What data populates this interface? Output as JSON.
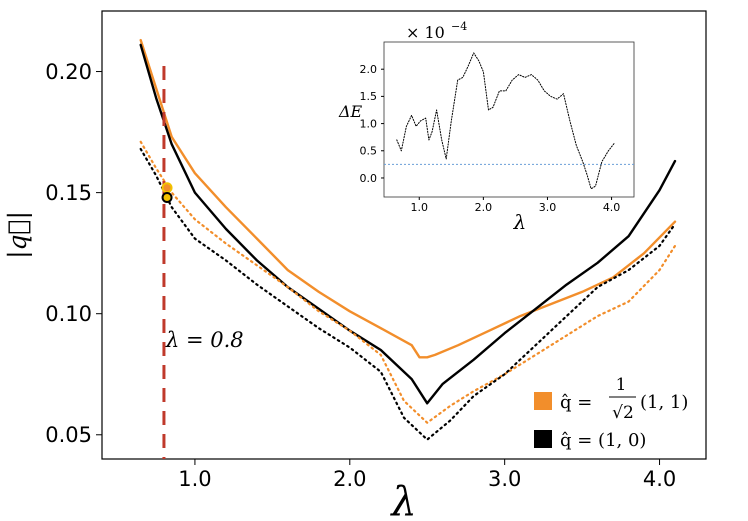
{
  "chart_data": [
    {
      "type": "line",
      "title": "",
      "xlabel": "λ",
      "ylabel": "|q⃗|",
      "xlim": [
        0.4,
        4.3
      ],
      "ylim": [
        0.04,
        0.225
      ],
      "xticks": [
        1.0,
        2.0,
        3.0,
        4.0
      ],
      "xtick_labels": [
        "1.0",
        "2.0",
        "3.0",
        "4.0"
      ],
      "yticks": [
        0.05,
        0.1,
        0.15,
        0.2
      ],
      "ytick_labels": [
        "0.05",
        "0.10",
        "0.15",
        "0.20"
      ],
      "vline": {
        "x": 0.8,
        "label": "λ = 0.8",
        "color": "#c0392b"
      },
      "legend_position": "bottom-right",
      "legend": [
        {
          "color": "#f28e2b",
          "label_lhs": "q̂ =",
          "frac_num": "1",
          "frac_den": "√2",
          "label_rhs": "(1, 1)"
        },
        {
          "color": "#000000",
          "label_lhs": "q̂ = (1, 0)",
          "frac_num": "",
          "frac_den": "",
          "label_rhs": ""
        }
      ],
      "series": [
        {
          "name": "orange-solid",
          "color": "#f28e2b",
          "style": "solid",
          "x": [
            0.65,
            0.75,
            0.85,
            1.0,
            1.2,
            1.4,
            1.6,
            1.8,
            2.0,
            2.2,
            2.4,
            2.45,
            2.5,
            2.55,
            2.7,
            2.9,
            3.1,
            3.3,
            3.5,
            3.7,
            3.9,
            4.1
          ],
          "y": [
            0.213,
            0.193,
            0.173,
            0.158,
            0.144,
            0.131,
            0.118,
            0.109,
            0.101,
            0.094,
            0.087,
            0.082,
            0.082,
            0.083,
            0.087,
            0.093,
            0.099,
            0.104,
            0.109,
            0.115,
            0.125,
            0.138
          ]
        },
        {
          "name": "black-solid",
          "color": "#000000",
          "style": "solid",
          "x": [
            0.65,
            0.75,
            0.85,
            1.0,
            1.2,
            1.4,
            1.6,
            1.8,
            2.0,
            2.2,
            2.4,
            2.5,
            2.6,
            2.8,
            3.0,
            3.2,
            3.4,
            3.6,
            3.8,
            4.0,
            4.1
          ],
          "y": [
            0.211,
            0.189,
            0.17,
            0.15,
            0.135,
            0.122,
            0.111,
            0.102,
            0.093,
            0.085,
            0.073,
            0.063,
            0.071,
            0.081,
            0.092,
            0.102,
            0.112,
            0.121,
            0.132,
            0.151,
            0.163
          ]
        },
        {
          "name": "orange-dotted",
          "color": "#f28e2b",
          "style": "dotted",
          "x": [
            0.65,
            0.75,
            0.85,
            1.0,
            1.2,
            1.4,
            1.6,
            1.8,
            2.0,
            2.2,
            2.35,
            2.5,
            2.65,
            2.8,
            3.0,
            3.2,
            3.4,
            3.6,
            3.8,
            4.0,
            4.1
          ],
          "y": [
            0.171,
            0.16,
            0.15,
            0.139,
            0.129,
            0.12,
            0.111,
            0.101,
            0.093,
            0.083,
            0.064,
            0.055,
            0.062,
            0.068,
            0.075,
            0.083,
            0.091,
            0.099,
            0.105,
            0.118,
            0.128
          ]
        },
        {
          "name": "black-dotted",
          "color": "#000000",
          "style": "dotted",
          "x": [
            0.65,
            0.75,
            0.85,
            1.0,
            1.2,
            1.4,
            1.6,
            1.8,
            2.0,
            2.2,
            2.35,
            2.5,
            2.65,
            2.8,
            3.0,
            3.2,
            3.4,
            3.6,
            3.8,
            4.0,
            4.1
          ],
          "y": [
            0.168,
            0.157,
            0.144,
            0.131,
            0.122,
            0.112,
            0.103,
            0.094,
            0.086,
            0.076,
            0.057,
            0.048,
            0.056,
            0.066,
            0.075,
            0.087,
            0.099,
            0.111,
            0.118,
            0.128,
            0.137
          ]
        }
      ],
      "markers": [
        {
          "name": "orange-marker",
          "x": 0.82,
          "y": 0.152,
          "fill": "#f28e2b",
          "edge": "#f2c200"
        },
        {
          "name": "black-marker",
          "x": 0.82,
          "y": 0.148,
          "fill": "#f2c200",
          "edge": "#000000"
        }
      ]
    },
    {
      "type": "line",
      "title": "",
      "xlabel": "λ",
      "ylabel": "ΔE",
      "scale_label": "× 10",
      "scale_exponent": "−4",
      "xlim": [
        0.45,
        4.35
      ],
      "ylim": [
        -0.35,
        2.5
      ],
      "xticks": [
        1.0,
        2.0,
        3.0,
        4.0
      ],
      "xtick_labels": [
        "1.0",
        "2.0",
        "3.0",
        "4.0"
      ],
      "yticks": [
        0.0,
        0.5,
        1.0,
        1.5,
        2.0
      ],
      "ytick_labels": [
        "0.0",
        "0.5",
        "1.0",
        "1.5",
        "2.0"
      ],
      "hline": {
        "y": 0.25,
        "color": "#6a9fd8"
      },
      "series": [
        {
          "name": "delta-e",
          "color": "#000000",
          "style": "dotted",
          "x": [
            0.65,
            0.72,
            0.8,
            0.88,
            0.95,
            1.02,
            1.1,
            1.15,
            1.2,
            1.27,
            1.35,
            1.42,
            1.5,
            1.6,
            1.68,
            1.76,
            1.85,
            1.93,
            2.0,
            2.08,
            2.15,
            2.25,
            2.35,
            2.45,
            2.55,
            2.65,
            2.75,
            2.85,
            2.95,
            3.05,
            3.15,
            3.25,
            3.35,
            3.45,
            3.55,
            3.62,
            3.68,
            3.75,
            3.85,
            3.95,
            4.05
          ],
          "y": [
            0.7,
            0.5,
            0.95,
            1.15,
            0.95,
            1.05,
            1.1,
            0.7,
            0.85,
            1.25,
            0.7,
            0.35,
            1.05,
            1.8,
            1.85,
            2.05,
            2.3,
            2.15,
            1.95,
            1.25,
            1.3,
            1.6,
            1.6,
            1.8,
            1.9,
            1.85,
            1.9,
            1.8,
            1.6,
            1.5,
            1.45,
            1.55,
            1.05,
            0.6,
            0.3,
            0.05,
            -0.2,
            -0.15,
            0.3,
            0.5,
            0.65
          ]
        }
      ]
    }
  ]
}
